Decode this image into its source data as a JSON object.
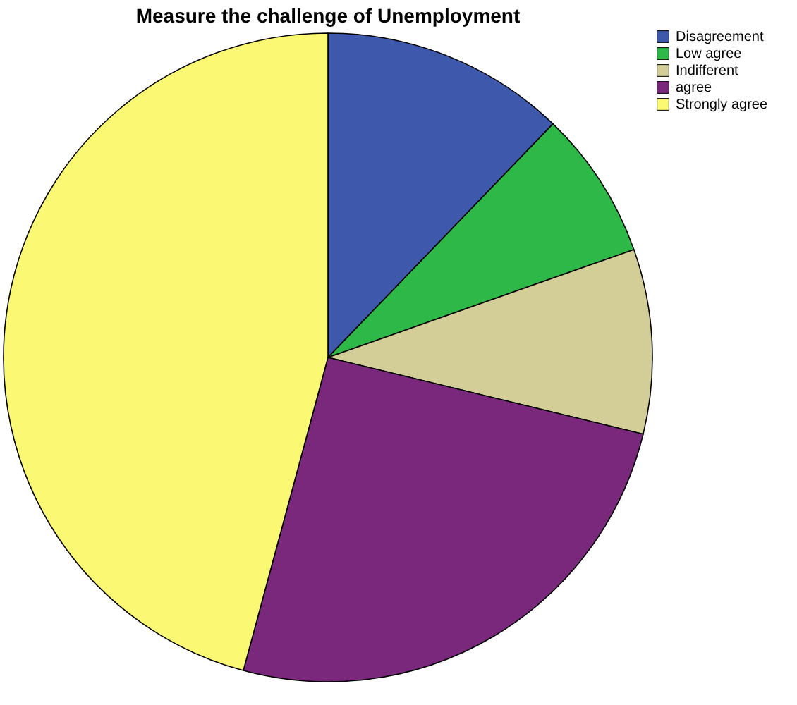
{
  "chart_data": {
    "type": "pie",
    "title": "Measure the challenge of Unemployment",
    "categories": [
      "Disagreement",
      "Low agree",
      "Indifferent",
      "agree",
      "Strongly agree"
    ],
    "values": [
      12.2,
      7.4,
      9.2,
      25.4,
      45.8
    ],
    "colors": [
      "#3e58ac",
      "#2eb848",
      "#d3ce97",
      "#79287c",
      "#fbf873"
    ],
    "legend": "top right"
  }
}
